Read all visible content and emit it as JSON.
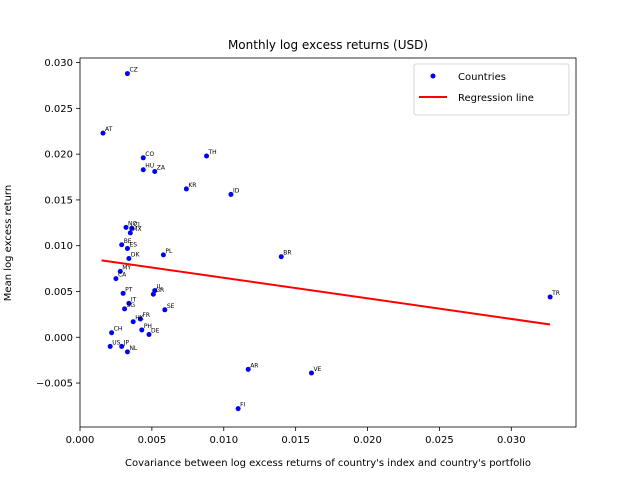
{
  "chart_data": {
    "type": "scatter",
    "title": "Monthly log excess returns (USD)",
    "xlabel": "Covariance between log excess returns of country's index and country's portfolio",
    "ylabel": "Mean log excess return",
    "xlim": [
      0.0,
      0.0345
    ],
    "ylim": [
      -0.0098,
      0.0305
    ],
    "xticks": [
      0.0,
      0.005,
      0.01,
      0.015,
      0.02,
      0.025,
      0.03
    ],
    "xtick_labels": [
      "0.000",
      "0.005",
      "0.010",
      "0.015",
      "0.020",
      "0.025",
      "0.030"
    ],
    "yticks": [
      -0.005,
      0.0,
      0.005,
      0.01,
      0.015,
      0.02,
      0.025,
      0.03
    ],
    "ytick_labels": [
      "−0.005",
      "0.000",
      "0.005",
      "0.010",
      "0.015",
      "0.020",
      "0.025",
      "0.030"
    ],
    "legend": {
      "position": "top-right",
      "entries": [
        {
          "label": "Countries",
          "marker": "dot",
          "color": "#0000ff"
        },
        {
          "label": "Regression line",
          "marker": "line",
          "color": "#ff0000"
        }
      ]
    },
    "points": [
      {
        "label": "CZ",
        "x": 0.0033,
        "y": 0.0288
      },
      {
        "label": "AT",
        "x": 0.0016,
        "y": 0.0223
      },
      {
        "label": "CO",
        "x": 0.0044,
        "y": 0.0196
      },
      {
        "label": "TH",
        "x": 0.0088,
        "y": 0.0198
      },
      {
        "label": "HU",
        "x": 0.0044,
        "y": 0.0183
      },
      {
        "label": "ZA",
        "x": 0.0052,
        "y": 0.0181
      },
      {
        "label": "KR",
        "x": 0.0074,
        "y": 0.0162
      },
      {
        "label": "ID",
        "x": 0.0105,
        "y": 0.0156
      },
      {
        "label": "NO",
        "x": 0.0032,
        "y": 0.012
      },
      {
        "label": "CL",
        "x": 0.0036,
        "y": 0.0119
      },
      {
        "label": "MX",
        "x": 0.0035,
        "y": 0.0114
      },
      {
        "label": "BE",
        "x": 0.0029,
        "y": 0.0101
      },
      {
        "label": "ES",
        "x": 0.0033,
        "y": 0.0097
      },
      {
        "label": "PL",
        "x": 0.0058,
        "y": 0.009
      },
      {
        "label": "DK",
        "x": 0.0034,
        "y": 0.0086
      },
      {
        "label": "BR",
        "x": 0.014,
        "y": 0.0088
      },
      {
        "label": "MY",
        "x": 0.0028,
        "y": 0.0072
      },
      {
        "label": "CA",
        "x": 0.0025,
        "y": 0.0064
      },
      {
        "label": "PT",
        "x": 0.003,
        "y": 0.0048
      },
      {
        "label": "IL",
        "x": 0.0052,
        "y": 0.0051
      },
      {
        "label": "GR",
        "x": 0.0051,
        "y": 0.0047
      },
      {
        "label": "IT",
        "x": 0.0034,
        "y": 0.0037
      },
      {
        "label": "SE",
        "x": 0.0059,
        "y": 0.003
      },
      {
        "label": "SG",
        "x": 0.0031,
        "y": 0.0031
      },
      {
        "label": "FR",
        "x": 0.0042,
        "y": 0.002
      },
      {
        "label": "HK",
        "x": 0.0037,
        "y": 0.0017
      },
      {
        "label": "PH",
        "x": 0.0043,
        "y": 0.0008
      },
      {
        "label": "CH",
        "x": 0.0022,
        "y": 0.0005
      },
      {
        "label": "DE",
        "x": 0.0048,
        "y": 0.0003
      },
      {
        "label": "JP",
        "x": 0.0029,
        "y": -0.001
      },
      {
        "label": "US",
        "x": 0.0021,
        "y": -0.001
      },
      {
        "label": "NL",
        "x": 0.0033,
        "y": -0.0016
      },
      {
        "label": "TR",
        "x": 0.0327,
        "y": 0.0044
      },
      {
        "label": "AR",
        "x": 0.0117,
        "y": -0.0035
      },
      {
        "label": "VE",
        "x": 0.0161,
        "y": -0.0039
      },
      {
        "label": "FI",
        "x": 0.011,
        "y": -0.0078
      }
    ],
    "regression_line": {
      "x": [
        0.0015,
        0.0327
      ],
      "y": [
        0.0084,
        0.0014
      ]
    },
    "grid": false
  }
}
